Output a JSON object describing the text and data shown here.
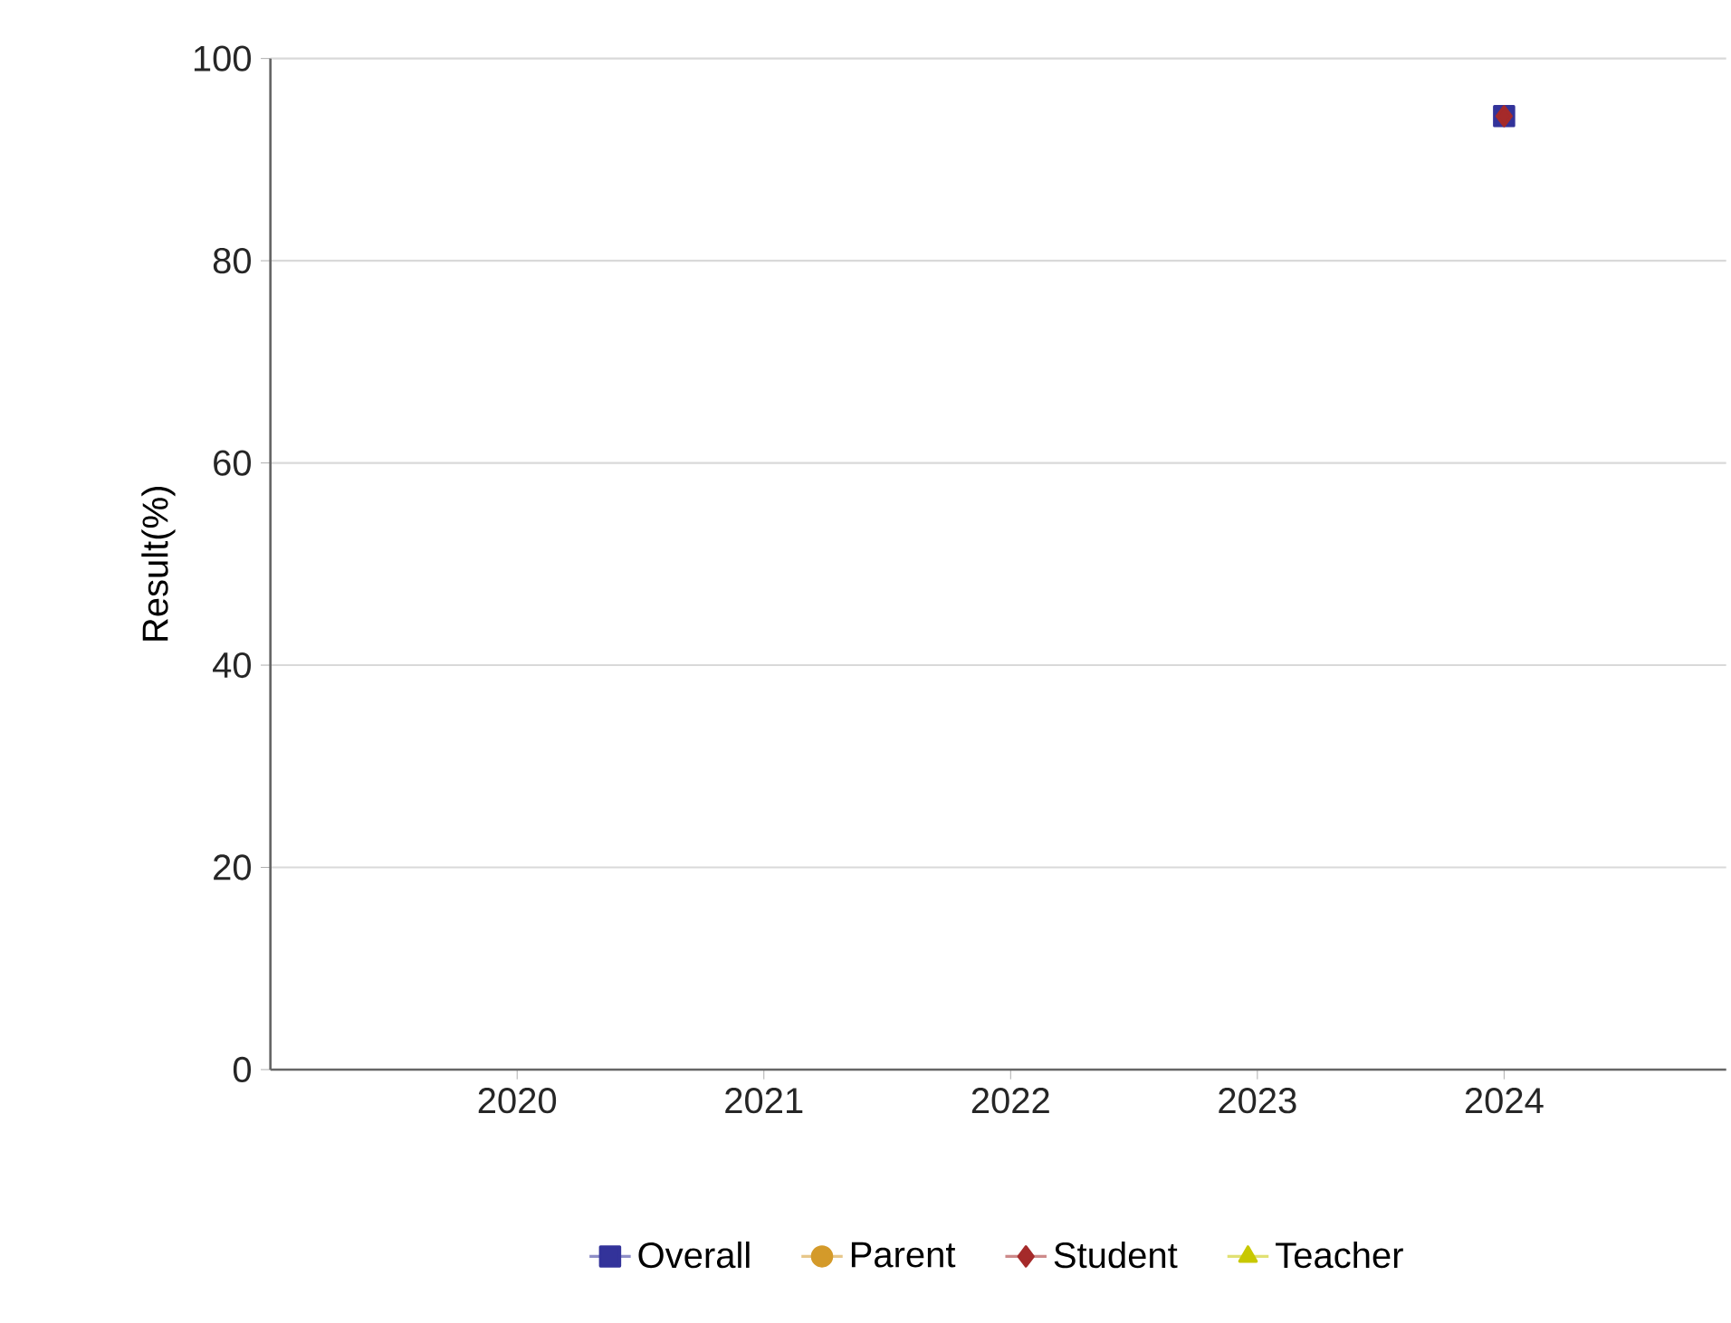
{
  "chart_data": {
    "type": "line",
    "ylabel": "Result(%)",
    "categories": [
      "2020",
      "2021",
      "2022",
      "2023",
      "2024"
    ],
    "series": [
      {
        "name": "Overall",
        "color": "#33339a",
        "marker": "square",
        "values": [
          null,
          null,
          null,
          null,
          94.3
        ]
      },
      {
        "name": "Parent",
        "color": "#d49a2a",
        "marker": "circle",
        "values": [
          null,
          null,
          null,
          null,
          null
        ]
      },
      {
        "name": "Student",
        "color": "#a52a2a",
        "marker": "diamond",
        "values": [
          null,
          null,
          null,
          null,
          94.3
        ]
      },
      {
        "name": "Teacher",
        "color": "#c8c800",
        "marker": "triangle",
        "values": [
          null,
          null,
          null,
          null,
          null
        ]
      }
    ],
    "ylim": [
      0,
      100
    ],
    "yticks": [
      0,
      20,
      40,
      60,
      80,
      100
    ],
    "grid": "y",
    "legend": "bottom"
  }
}
